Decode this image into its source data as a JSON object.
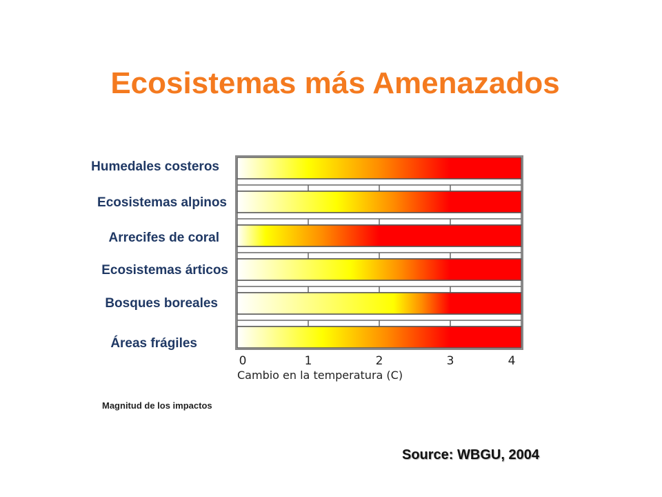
{
  "title": "Ecosistemas más Amenazados",
  "source": "Source: WBGU, 2004",
  "colors": {
    "title": "#f47a1f",
    "labels": "#1f3864",
    "gradient": [
      "#ffffff",
      "#ffff00",
      "#ff8c00",
      "#ff0000"
    ]
  },
  "chart_data": {
    "type": "heatmap",
    "title": "Ecosistemas más Amenazados",
    "xlabel": "Cambio en la temperatura (C)",
    "ylabel": "",
    "xlim": [
      0,
      4
    ],
    "x_ticks": [
      "0",
      "1",
      "2",
      "3",
      "4"
    ],
    "legend_text": "Magnitud de los impactos",
    "categories": [
      "Humedales costeros",
      "Ecosistemas alpinos",
      "Arrecifes de coral",
      "Ecosistemas árticos",
      "Bosques boreales",
      "Áreas frágiles"
    ],
    "gradient_stops": [
      {
        "yellow_at": 1.0,
        "red_at": 3.0
      },
      {
        "yellow_at": 1.4,
        "red_at": 3.0
      },
      {
        "yellow_at": 0.4,
        "red_at": 2.0
      },
      {
        "yellow_at": 1.6,
        "red_at": 3.0
      },
      {
        "yellow_at": 2.2,
        "red_at": 3.0
      },
      {
        "yellow_at": 1.2,
        "red_at": 3.0
      }
    ]
  }
}
